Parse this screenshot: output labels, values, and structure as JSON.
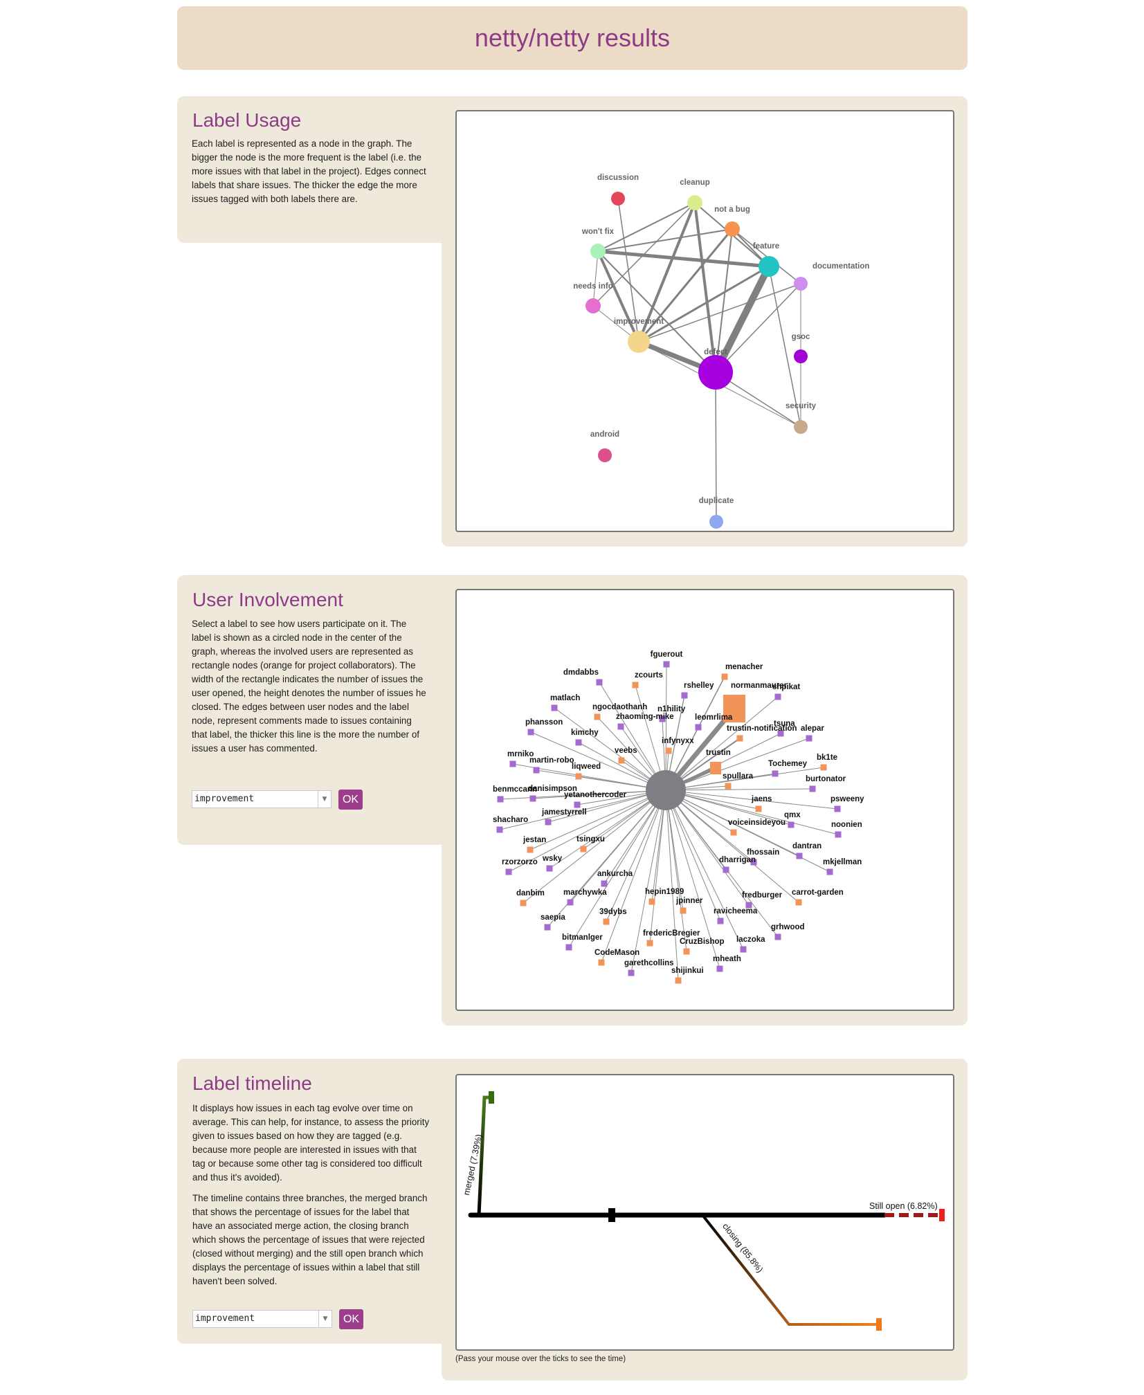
{
  "page": {
    "title": "netty/netty results"
  },
  "label_usage": {
    "title": "Label Usage",
    "description": "Each label is represented as a node in the graph. The bigger the node is the more frequent is the label (i.e. the more issues with that label in the project). Edges connect labels that share issues. The thicker the edge the more issues tagged with both labels there are.",
    "nodes": [
      {
        "id": "discussion",
        "label": "discussion",
        "color": "#e3475a"
      },
      {
        "id": "cleanup",
        "label": "cleanup",
        "color": "#d8ee8c"
      },
      {
        "id": "not_a_bug",
        "label": "not a bug",
        "color": "#f7934c"
      },
      {
        "id": "wont_fix",
        "label": "won't fix",
        "color": "#a6f2b9"
      },
      {
        "id": "feature",
        "label": "feature",
        "color": "#22c3c3"
      },
      {
        "id": "documentation",
        "label": "documentation",
        "color": "#cf8eee"
      },
      {
        "id": "needs_info",
        "label": "needs info",
        "color": "#e46fd1"
      },
      {
        "id": "improvement",
        "label": "improvement",
        "color": "#f4d68a"
      },
      {
        "id": "gsoc",
        "label": "gsoc",
        "color": "#a500d6"
      },
      {
        "id": "defect",
        "label": "defect",
        "color": "#a600e0"
      },
      {
        "id": "security",
        "label": "security",
        "color": "#c9a98c"
      },
      {
        "id": "android",
        "label": "android",
        "color": "#dc5090"
      },
      {
        "id": "duplicate",
        "label": "duplicate",
        "color": "#8fa7f0"
      }
    ]
  },
  "user_involvement": {
    "title": "User Involvement",
    "description": "Select a label to see how users participate on it. The label is shown as a circled node in the center of the graph, whereas the involved users are represented as rectangle nodes (orange for project collaborators). The width of the rectangle indicates the number of issues the user opened, the height denotes the number of issues he closed. The edges between user nodes and the label node, represent comments made to issues containing that label, the thicker this line is the more the number of issues a user has commented.",
    "selected_label": "improvement",
    "ok_label": "OK",
    "colors": {
      "collaborator": "#f29358",
      "user": "#a46ad0",
      "center": "#7e7e84"
    },
    "users": [
      {
        "name": "fguerout",
        "type": "user"
      },
      {
        "name": "menacher",
        "type": "collaborator"
      },
      {
        "name": "dmdabbs",
        "type": "user"
      },
      {
        "name": "zcourts",
        "type": "collaborator"
      },
      {
        "name": "rshelley",
        "type": "user"
      },
      {
        "name": "normanmaurer",
        "type": "collaborator"
      },
      {
        "name": "shpikat",
        "type": "user"
      },
      {
        "name": "matlach",
        "type": "user"
      },
      {
        "name": "ngocdaothanh",
        "type": "collaborator"
      },
      {
        "name": "n1hility",
        "type": "user"
      },
      {
        "name": "zhaoming-mike",
        "type": "user"
      },
      {
        "name": "leomrlima",
        "type": "user"
      },
      {
        "name": "tsuna",
        "type": "user"
      },
      {
        "name": "trustin-notification",
        "type": "collaborator"
      },
      {
        "name": "alepar",
        "type": "user"
      },
      {
        "name": "phansson",
        "type": "user"
      },
      {
        "name": "kimchy",
        "type": "user"
      },
      {
        "name": "infynyxx",
        "type": "collaborator"
      },
      {
        "name": "mrniko",
        "type": "user"
      },
      {
        "name": "veebs",
        "type": "collaborator"
      },
      {
        "name": "trustin",
        "type": "collaborator"
      },
      {
        "name": "Tochemey",
        "type": "user"
      },
      {
        "name": "bk1te",
        "type": "collaborator"
      },
      {
        "name": "martin-robo",
        "type": "user"
      },
      {
        "name": "liqweed",
        "type": "collaborator"
      },
      {
        "name": "spullara",
        "type": "collaborator"
      },
      {
        "name": "burtonator",
        "type": "user"
      },
      {
        "name": "benmccann",
        "type": "user"
      },
      {
        "name": "danisimpson",
        "type": "user"
      },
      {
        "name": "yetanothercoder",
        "type": "user"
      },
      {
        "name": "jaens",
        "type": "collaborator"
      },
      {
        "name": "psweeny",
        "type": "user"
      },
      {
        "name": "jamestyrrell",
        "type": "user"
      },
      {
        "name": "qmx",
        "type": "user"
      },
      {
        "name": "shacharo",
        "type": "user"
      },
      {
        "name": "voiceinsideyou",
        "type": "collaborator"
      },
      {
        "name": "noonien",
        "type": "user"
      },
      {
        "name": "jestan",
        "type": "collaborator"
      },
      {
        "name": "tsingxu",
        "type": "collaborator"
      },
      {
        "name": "dantran",
        "type": "user"
      },
      {
        "name": "fhossain",
        "type": "user"
      },
      {
        "name": "rzorzorzo",
        "type": "user"
      },
      {
        "name": "wsky",
        "type": "user"
      },
      {
        "name": "mkjellman",
        "type": "user"
      },
      {
        "name": "dharrigan",
        "type": "user"
      },
      {
        "name": "ankurcha",
        "type": "user"
      },
      {
        "name": "danbim",
        "type": "collaborator"
      },
      {
        "name": "hepin1989",
        "type": "collaborator"
      },
      {
        "name": "carrot-garden",
        "type": "collaborator"
      },
      {
        "name": "marchywka",
        "type": "user"
      },
      {
        "name": "jpinner",
        "type": "collaborator"
      },
      {
        "name": "fredburger",
        "type": "user"
      },
      {
        "name": "39dybs",
        "type": "collaborator"
      },
      {
        "name": "ravicheema",
        "type": "user"
      },
      {
        "name": "saepia",
        "type": "user"
      },
      {
        "name": "grhwood",
        "type": "user"
      },
      {
        "name": "fredericBregier",
        "type": "collaborator"
      },
      {
        "name": "bitmanlger",
        "type": "user"
      },
      {
        "name": "CruzBishop",
        "type": "collaborator"
      },
      {
        "name": "laczoka",
        "type": "user"
      },
      {
        "name": "CodeMason",
        "type": "collaborator"
      },
      {
        "name": "mheath",
        "type": "user"
      },
      {
        "name": "garethcollins",
        "type": "user"
      },
      {
        "name": "shijinkui",
        "type": "collaborator"
      }
    ]
  },
  "label_timeline": {
    "title": "Label timeline",
    "description_1": "It displays how issues in each tag evolve over time on average. This can help, for instance, to assess the priority given to issues based on how they are tagged (e.g. because more people are interested in issues with that tag or because some other tag is considered too difficult and thus it's avoided).",
    "description_2": "The timeline contains three branches, the merged branch that shows the percentage of issues for the label that have an associated merge action, the closing branch which shows the percentage of issues that were rejected (closed without merging) and the still open branch which displays the percentage of issues within a label that still haven't been solved.",
    "selected_label": "improvement",
    "ok_label": "OK",
    "merged_label": "merged (7.39%)",
    "closing_label": "closing (85.8%)",
    "open_label": "Still open (6.82%)",
    "merged_percent": 7.39,
    "closing_percent": 85.8,
    "open_percent": 6.82,
    "footnote": "(Pass your mouse over the ticks to see the time)"
  }
}
